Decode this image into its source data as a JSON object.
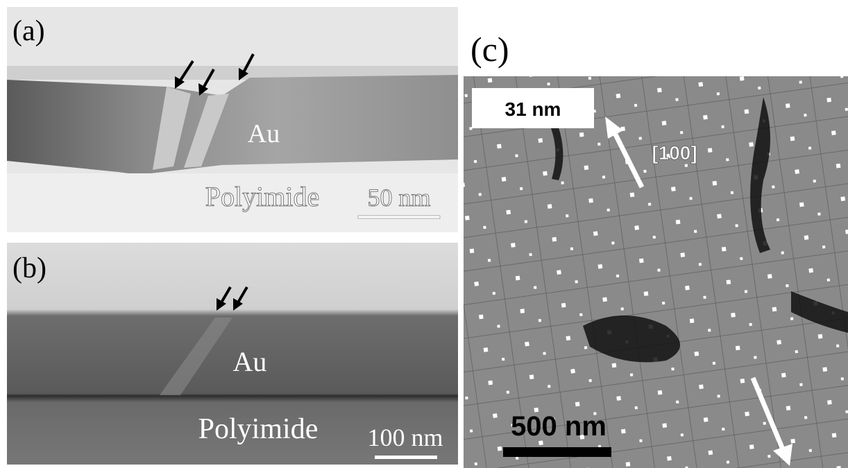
{
  "panels": [
    {
      "label": "(a)",
      "layer_top": "Au",
      "layer_bottom": "Polyimide",
      "scale_bar": "50 nm"
    },
    {
      "label": "(b)",
      "layer_top": "Au",
      "layer_bottom": "Polyimide",
      "scale_bar": "100 nm"
    },
    {
      "label": "(c)",
      "inset": "31 nm",
      "direction": "[100]",
      "scale_bar": "500 nm"
    }
  ]
}
